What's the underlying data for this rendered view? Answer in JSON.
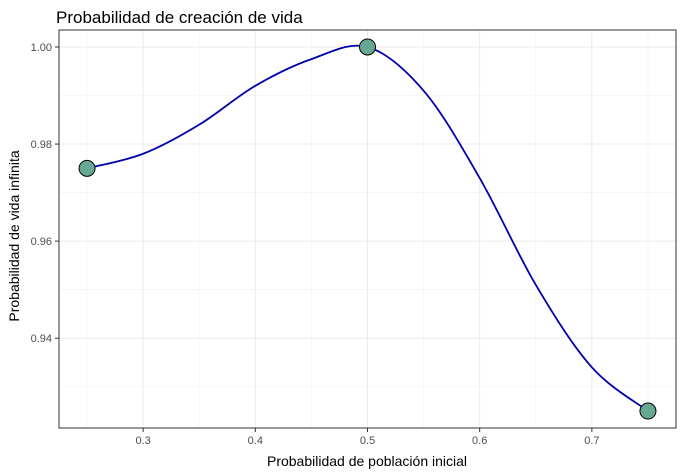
{
  "chart_data": {
    "type": "line",
    "title": "Probabilidad de creación de vida",
    "xlabel": "Probabilidad de población inicial",
    "ylabel": "Probabilidad de vida infinita",
    "xlim": [
      0.225,
      0.775
    ],
    "ylim": [
      0.9215,
      1.0035
    ],
    "x_ticks": [
      0.3,
      0.4,
      0.5,
      0.6,
      0.7
    ],
    "x_tick_labels": [
      "0.3",
      "0.4",
      "0.5",
      "0.6",
      "0.7"
    ],
    "y_ticks": [
      0.94,
      0.96,
      0.98,
      1.0
    ],
    "y_tick_labels": [
      "0.94",
      "0.96",
      "0.98",
      "1.00"
    ],
    "grid": true,
    "series": [
      {
        "kind": "points",
        "x": [
          0.25,
          0.5,
          0.75
        ],
        "y": [
          0.975,
          1.0,
          0.925
        ]
      },
      {
        "kind": "smooth-line",
        "x": [
          0.25,
          0.3,
          0.35,
          0.4,
          0.45,
          0.5,
          0.55,
          0.6,
          0.65,
          0.7,
          0.75
        ],
        "y": [
          0.975,
          0.978,
          0.984,
          0.992,
          0.9975,
          1.0,
          0.991,
          0.973,
          0.951,
          0.934,
          0.925
        ]
      }
    ],
    "colors": {
      "line": "#0000aa",
      "point_fill": "#66a894",
      "point_stroke": "#000000"
    }
  }
}
